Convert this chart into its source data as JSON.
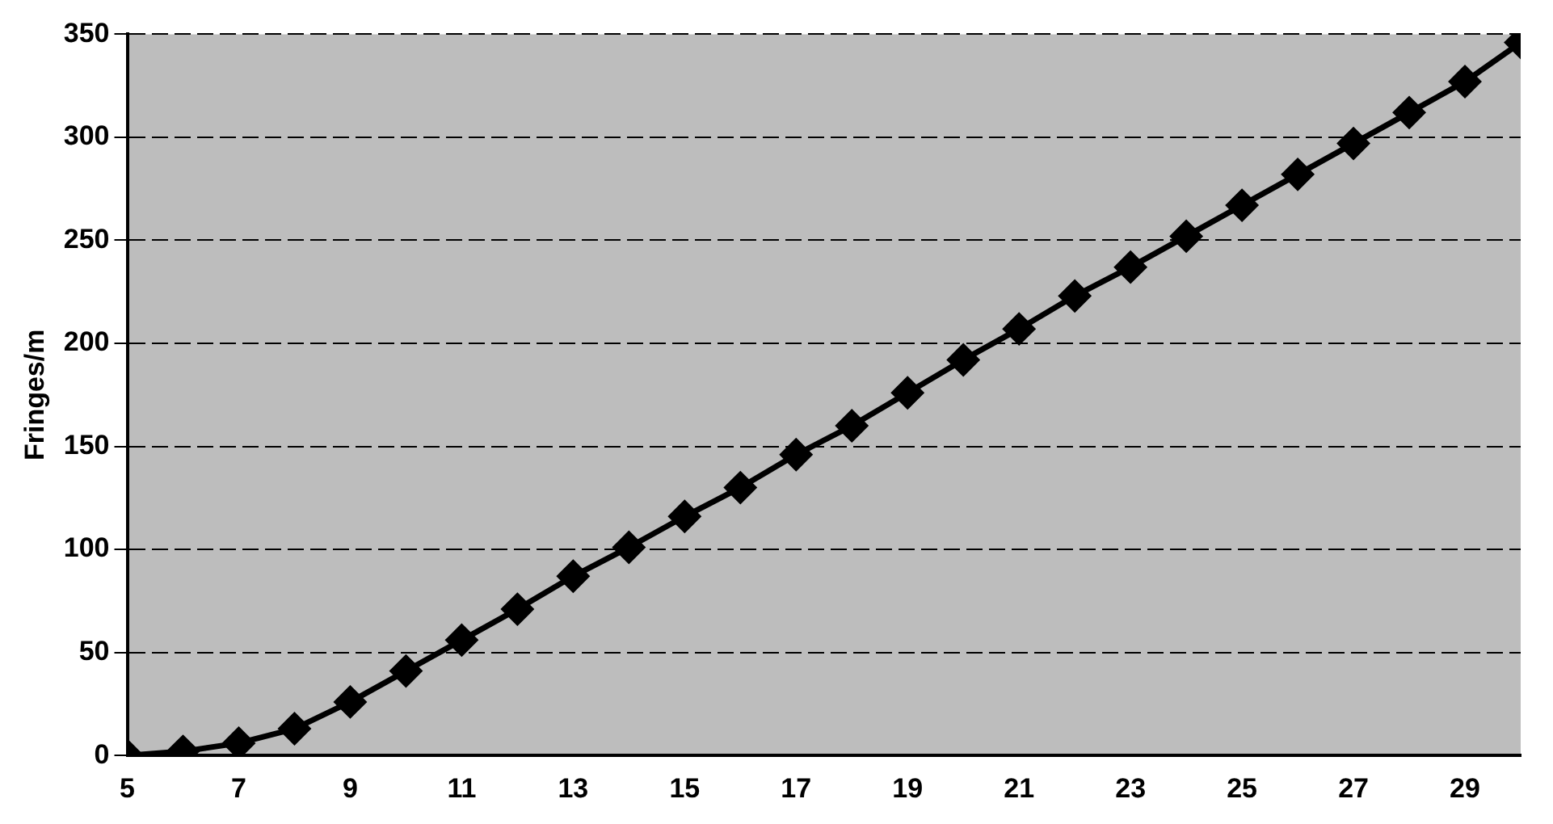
{
  "chart_data": {
    "type": "line",
    "ylabel": "Fringes/m",
    "x": [
      5,
      6,
      7,
      8,
      9,
      10,
      11,
      12,
      13,
      14,
      15,
      16,
      17,
      18,
      19,
      20,
      21,
      22,
      23,
      24,
      25,
      26,
      27,
      28,
      29,
      30
    ],
    "series": [
      {
        "color": "#000000",
        "values": [
          0,
          2,
          6,
          13,
          26,
          41,
          56,
          71,
          87,
          101,
          116,
          130,
          146,
          160,
          176,
          192,
          207,
          223,
          237,
          252,
          267,
          282,
          297,
          312,
          327,
          346
        ]
      }
    ],
    "xlim": [
      5,
      30
    ],
    "xticks": [
      5,
      7,
      9,
      11,
      13,
      15,
      17,
      19,
      21,
      23,
      25,
      27,
      29
    ],
    "ylim": [
      0,
      350
    ],
    "yticks": [
      0,
      50,
      100,
      150,
      200,
      250,
      300,
      350
    ],
    "grid": "y",
    "marker": "diamond",
    "line_style": "solid",
    "legend": false
  }
}
